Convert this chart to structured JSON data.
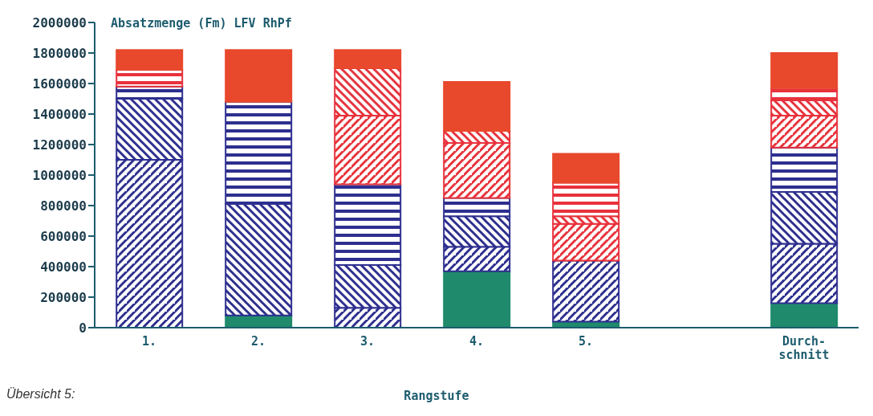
{
  "chart_data": {
    "type": "bar",
    "title": "Absatzmenge (Fm) LFV RhPf",
    "xlabel": "Rangstufe",
    "annotations": [
      "Übersicht 5:"
    ],
    "categories": [
      "1.",
      "2.",
      "3.",
      "4.",
      "5.",
      null,
      "Durch-\nschnitt"
    ],
    "stacked": true,
    "series": [
      {
        "color": "#1f8a6c",
        "values": [
          null,
          80000,
          null,
          370000,
          40000,
          null,
          160000
        ]
      },
      {
        "color": "#2e2f8f",
        "values": [
          1100000,
          null,
          130000,
          160000,
          400000,
          null,
          390000
        ]
      },
      {
        "color": "#2e2f8f",
        "values": [
          400000,
          730000,
          280000,
          200000,
          null,
          null,
          340000
        ]
      },
      {
        "color": "#2e2f8f",
        "values": [
          80000,
          670000,
          530000,
          120000,
          null,
          null,
          290000
        ]
      },
      {
        "color": "#e8323c",
        "values": [
          null,
          null,
          450000,
          360000,
          240000,
          null,
          210000
        ]
      },
      {
        "color": "#e8323c",
        "values": [
          null,
          null,
          310000,
          80000,
          50000,
          null,
          100000
        ]
      },
      {
        "color": "#e8323c",
        "values": [
          110000,
          null,
          null,
          null,
          220000,
          null,
          80000
        ]
      },
      {
        "color": "#e8482c",
        "values": [
          130000,
          340000,
          120000,
          320000,
          190000,
          null,
          230000
        ]
      }
    ],
    "ylim": [
      0,
      2000000
    ],
    "yticks": [
      0,
      200000,
      400000,
      600000,
      800000,
      1000000,
      1200000,
      1400000,
      1600000,
      1800000,
      2000000
    ],
    "grid": false,
    "legend": false
  }
}
